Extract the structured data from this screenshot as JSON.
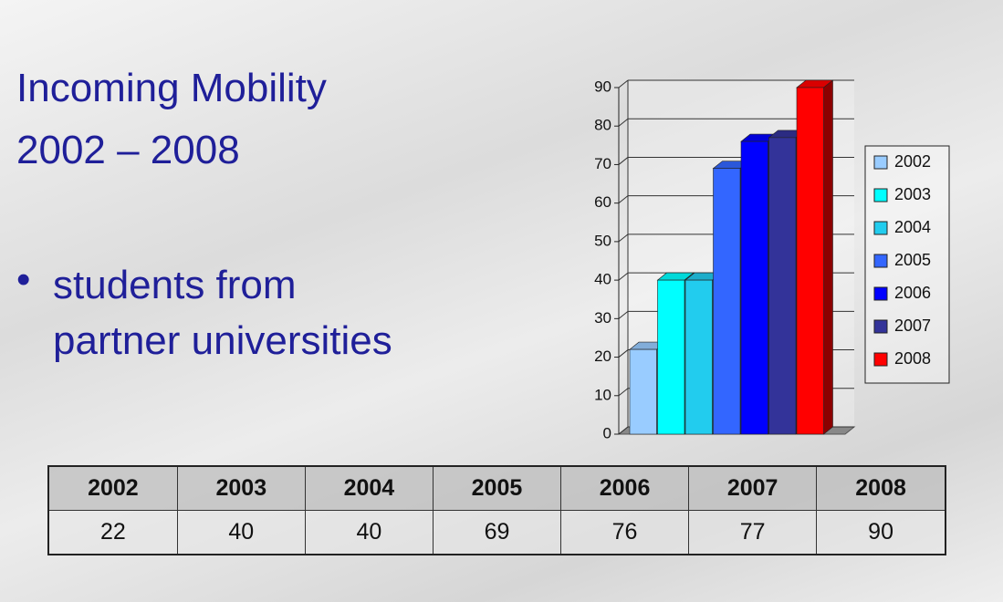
{
  "title": [
    "Incoming Mobility",
    "2002 – 2008"
  ],
  "bullets": [
    "students from partner universities"
  ],
  "chart_data": {
    "type": "bar",
    "categories": [
      null
    ],
    "series": [
      {
        "name": "2002",
        "color": "#99ccff",
        "values": [
          22
        ]
      },
      {
        "name": "2003",
        "color": "#00ffff",
        "values": [
          40
        ]
      },
      {
        "name": "2004",
        "color": "#22ccee",
        "values": [
          40
        ]
      },
      {
        "name": "2005",
        "color": "#3366ff",
        "values": [
          69
        ]
      },
      {
        "name": "2006",
        "color": "#0000ff",
        "values": [
          76
        ]
      },
      {
        "name": "2007",
        "color": "#333399",
        "values": [
          77
        ]
      },
      {
        "name": "2008",
        "color": "#ff0000",
        "values": [
          90
        ]
      }
    ],
    "ylim": [
      0,
      90
    ],
    "yticks": [
      0,
      10,
      20,
      30,
      40,
      50,
      60,
      70,
      80,
      90
    ],
    "grid": true,
    "legend": "right"
  },
  "table": {
    "header": [
      "2002",
      "2003",
      "2004",
      "2005",
      "2006",
      "2007",
      "2008"
    ],
    "rows": [
      [
        22,
        40,
        40,
        69,
        76,
        77,
        90
      ]
    ]
  }
}
